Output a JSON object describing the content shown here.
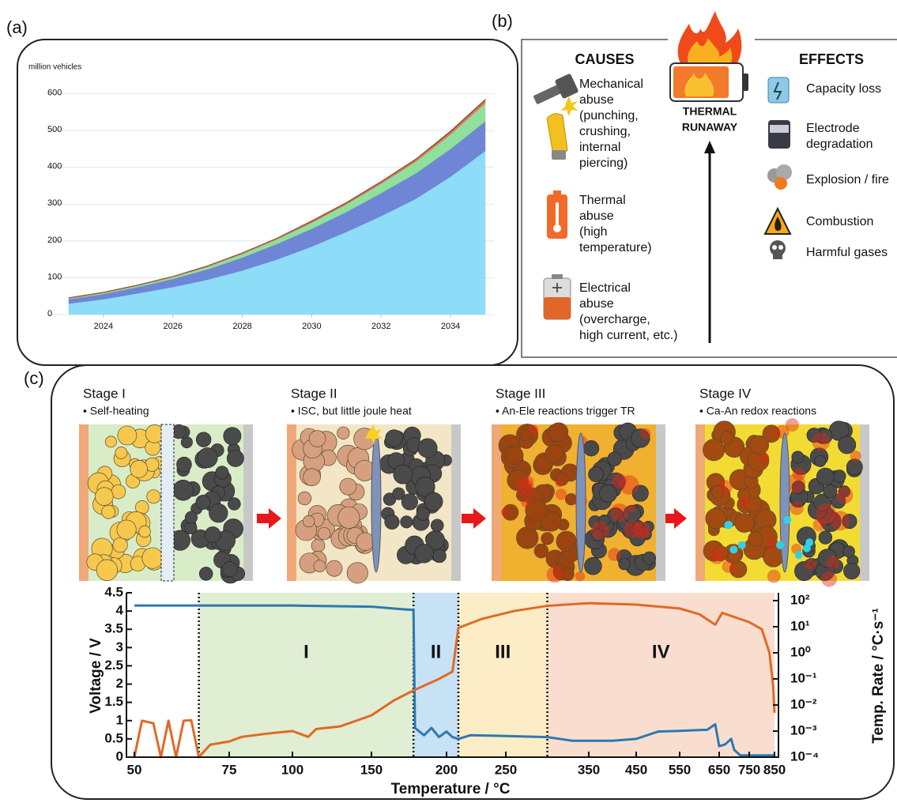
{
  "panel_labels": [
    "(a)",
    "(b)",
    "(c)"
  ],
  "chart_data": [
    {
      "type": "area",
      "stacked": true,
      "ylabel": "million vehicles",
      "x": [
        2023,
        2024,
        2025,
        2026,
        2027,
        2028,
        2029,
        2030,
        2031,
        2032,
        2033,
        2034,
        2035
      ],
      "xlim": [
        2023,
        2035
      ],
      "xticks": [
        2024,
        2026,
        2028,
        2030,
        2032,
        2034
      ],
      "ylim": [
        0,
        640
      ],
      "yticks": [
        0,
        100,
        200,
        300,
        400,
        500,
        600
      ],
      "grid": true,
      "series": [
        {
          "color": "#8ddcf8",
          "values": [
            30,
            42,
            58,
            75,
            95,
            120,
            150,
            185,
            225,
            268,
            315,
            375,
            445
          ]
        },
        {
          "color": "#6f86d6",
          "values": [
            12,
            14,
            17,
            22,
            28,
            35,
            42,
            48,
            54,
            62,
            69,
            75,
            80
          ]
        },
        {
          "color": "#8fe09c",
          "values": [
            2,
            3,
            4,
            5,
            7,
            10,
            13,
            17,
            21,
            26,
            32,
            40,
            50
          ]
        },
        {
          "color": "#e8735a",
          "values": [
            1,
            1,
            1,
            1,
            2,
            2,
            2,
            3,
            3,
            4,
            5,
            6,
            7
          ]
        },
        {
          "color": "#a0522d",
          "values": [
            1,
            1,
            1,
            1,
            1,
            1,
            1,
            2,
            2,
            2,
            2,
            3,
            3
          ]
        }
      ]
    },
    {
      "type": "line",
      "xlabel": "Temperature / °C",
      "ylabel": "Voltage / V",
      "y2label": "Temp. Rate / °C·s⁻¹",
      "xlim": [
        50,
        850
      ],
      "xticks": [
        50,
        75,
        100,
        150,
        200,
        250,
        350,
        450,
        550,
        650,
        750,
        850
      ],
      "ylim": [
        0,
        4.5
      ],
      "yticks": [
        0,
        0.5,
        1,
        1.5,
        2,
        2.5,
        3,
        3.5,
        4,
        4.5
      ],
      "y2lim": [
        0.0001,
        200
      ],
      "y2log": true,
      "y2ticks": [
        {
          "value": 0.0001,
          "label": "10⁻⁴"
        },
        {
          "value": 0.001,
          "label": "10⁻³"
        },
        {
          "value": 0.01,
          "label": "10⁻²"
        },
        {
          "value": 0.1,
          "label": "10⁻¹"
        },
        {
          "value": 1,
          "label": "10⁰"
        },
        {
          "value": 10,
          "label": "10¹"
        },
        {
          "value": 100,
          "label": "10²"
        }
      ],
      "regions": [
        {
          "label": "I",
          "from": 67,
          "to": 178,
          "color": "#d8eac8"
        },
        {
          "label": "II",
          "from": 178,
          "to": 210,
          "color": "#b9d9f3"
        },
        {
          "label": "III",
          "from": 210,
          "to": 300,
          "color": "#fbe8b8"
        },
        {
          "label": "IV",
          "from": 300,
          "to": 850,
          "color": "#f7d6c4"
        }
      ],
      "series": [
        {
          "color": "#2e78b0",
          "x": [
            50,
            67,
            100,
            150,
            170,
            178,
            179,
            185,
            190,
            195,
            200,
            205,
            210,
            220,
            250,
            300,
            330,
            400,
            450,
            500,
            550,
            620,
            640,
            650,
            670,
            690,
            700,
            720,
            850
          ],
          "values": [
            4.15,
            4.15,
            4.15,
            4.12,
            4.05,
            4.03,
            0.8,
            0.6,
            0.8,
            0.55,
            0.7,
            0.55,
            0.5,
            0.6,
            0.58,
            0.55,
            0.45,
            0.45,
            0.5,
            0.7,
            0.72,
            0.75,
            0.9,
            0.3,
            0.35,
            0.5,
            0.2,
            0.05,
            0.05
          ]
        },
        {
          "color": "#e06a25",
          "axis": "y2",
          "x": [
            50,
            52,
            55,
            57,
            59,
            61,
            63,
            65,
            67,
            70,
            75,
            80,
            90,
            100,
            110,
            115,
            130,
            150,
            165,
            178,
            195,
            205,
            210,
            230,
            260,
            300,
            350,
            450,
            550,
            600,
            640,
            660,
            750,
            800,
            830,
            845,
            850
          ],
          "values": [
            0.0001,
            0.0025,
            0.002,
            0.0001,
            0.0025,
            0.0001,
            0.0025,
            0.0026,
            0.0001,
            0.0003,
            0.0004,
            0.0006,
            0.0008,
            0.001,
            0.0006,
            0.0012,
            0.0015,
            0.004,
            0.015,
            0.036,
            0.1,
            0.19,
            9,
            20,
            40,
            63,
            80,
            70,
            50,
            30,
            12,
            34,
            15,
            8,
            1,
            0.05,
            0.005
          ]
        }
      ]
    }
  ],
  "diagram": {
    "causes_title": "CAUSES",
    "effects_title": "EFFECTS",
    "center": [
      "THERMAL",
      "RUNAWAY"
    ],
    "causes": [
      {
        "lines": [
          "Mechanical",
          "abuse",
          "(punching,",
          "crushing,",
          "internal",
          "piercing)"
        ]
      },
      {
        "lines": [
          "Thermal",
          "abuse",
          "(high",
          "temperature)"
        ]
      },
      {
        "lines": [
          "Electrical",
          "abuse",
          "(overcharge,",
          "high current, etc.)"
        ]
      }
    ],
    "effects": [
      {
        "lines": [
          "Capacity loss"
        ]
      },
      {
        "lines": [
          "Electrode",
          "degradation"
        ]
      },
      {
        "lines": [
          "Explosion / fire"
        ]
      },
      {
        "lines": [
          "Combustion"
        ]
      },
      {
        "lines": [
          "Harmful gases"
        ]
      }
    ]
  },
  "stages": [
    {
      "title": "Stage I",
      "note": "• Self-heating"
    },
    {
      "title": "Stage II",
      "note": "• ISC, but little joule heat"
    },
    {
      "title": "Stage III",
      "note": "• An-Ele reactions trigger TR"
    },
    {
      "title": "Stage IV",
      "note": "• Ca-An redox reactions"
    }
  ]
}
